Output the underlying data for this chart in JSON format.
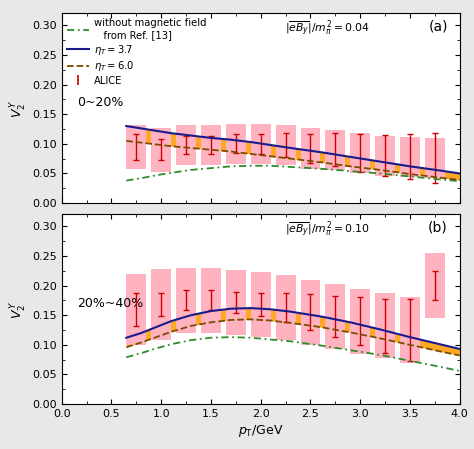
{
  "title_a": "(a)",
  "title_b": "(b)",
  "xlabel": "$p_{\\mathrm{T}}$/GeV",
  "ylabel": "$V_2^{\\,Y}$",
  "xlim": [
    0.0,
    4.0
  ],
  "ylim_a": [
    0.0,
    0.32
  ],
  "ylim_b": [
    0.0,
    0.32
  ],
  "yticks": [
    0.0,
    0.05,
    0.1,
    0.15,
    0.2,
    0.25,
    0.3
  ],
  "xticks": [
    0.0,
    0.5,
    1.0,
    1.5,
    2.0,
    2.5,
    3.0,
    3.5,
    4.0
  ],
  "panel_a_label": "0~20%",
  "panel_b_label": "20%~40%",
  "label_a": "$|\\overline{eB_y}|/m_{\\pi}^2 = 0.04$",
  "label_b": "$|\\overline{eB_y}|/m_{\\pi}^2 = 0.10$",
  "pt": [
    0.65,
    0.8,
    0.95,
    1.1,
    1.3,
    1.5,
    1.7,
    1.9,
    2.1,
    2.3,
    2.6,
    2.9,
    3.2,
    3.5,
    3.8,
    4.0
  ],
  "eta37_a": [
    0.13,
    0.126,
    0.122,
    0.118,
    0.114,
    0.11,
    0.107,
    0.103,
    0.098,
    0.093,
    0.086,
    0.078,
    0.07,
    0.062,
    0.055,
    0.05
  ],
  "eta60_a": [
    0.105,
    0.102,
    0.099,
    0.096,
    0.093,
    0.09,
    0.087,
    0.083,
    0.079,
    0.075,
    0.069,
    0.062,
    0.056,
    0.049,
    0.043,
    0.039
  ],
  "nomag_a": [
    0.038,
    0.042,
    0.047,
    0.051,
    0.056,
    0.059,
    0.062,
    0.063,
    0.063,
    0.061,
    0.058,
    0.054,
    0.05,
    0.045,
    0.04,
    0.037
  ],
  "eta37_b": [
    0.112,
    0.12,
    0.13,
    0.14,
    0.15,
    0.157,
    0.161,
    0.162,
    0.16,
    0.156,
    0.148,
    0.138,
    0.126,
    0.113,
    0.101,
    0.093
  ],
  "eta60_b": [
    0.096,
    0.104,
    0.113,
    0.122,
    0.132,
    0.138,
    0.142,
    0.143,
    0.141,
    0.137,
    0.13,
    0.121,
    0.111,
    0.1,
    0.089,
    0.082
  ],
  "nomag_b": [
    0.079,
    0.086,
    0.094,
    0.101,
    0.108,
    0.112,
    0.113,
    0.112,
    0.109,
    0.106,
    0.099,
    0.091,
    0.083,
    0.073,
    0.063,
    0.056
  ],
  "alice_pt_a": [
    0.75,
    1.0,
    1.25,
    1.5,
    1.75,
    2.0,
    2.25,
    2.5,
    2.75,
    3.0,
    3.25,
    3.5,
    3.75
  ],
  "alice_val_a": [
    0.095,
    0.09,
    0.098,
    0.098,
    0.1,
    0.1,
    0.098,
    0.092,
    0.09,
    0.085,
    0.08,
    0.078,
    0.076
  ],
  "alice_err_a": [
    0.022,
    0.018,
    0.015,
    0.015,
    0.016,
    0.017,
    0.02,
    0.024,
    0.028,
    0.032,
    0.035,
    0.038,
    0.042
  ],
  "alice_box_half_a": [
    0.037,
    0.037,
    0.034,
    0.034,
    0.034,
    0.034,
    0.034,
    0.034,
    0.034,
    0.034,
    0.034,
    0.034,
    0.034
  ],
  "alice_pt_b": [
    0.75,
    1.0,
    1.25,
    1.5,
    1.75,
    2.0,
    2.25,
    2.5,
    2.75,
    3.0,
    3.25,
    3.5,
    3.75
  ],
  "alice_val_b": [
    0.16,
    0.168,
    0.175,
    0.175,
    0.172,
    0.168,
    0.163,
    0.155,
    0.148,
    0.14,
    0.132,
    0.125,
    0.2
  ],
  "alice_err_b": [
    0.028,
    0.02,
    0.017,
    0.017,
    0.018,
    0.02,
    0.024,
    0.03,
    0.035,
    0.04,
    0.046,
    0.052,
    0.025
  ],
  "alice_box_half_b": [
    0.06,
    0.06,
    0.055,
    0.055,
    0.055,
    0.055,
    0.055,
    0.055,
    0.055,
    0.055,
    0.055,
    0.055,
    0.055
  ],
  "color_eta37": "#1a1a8c",
  "color_eta60": "#7b4c00",
  "color_nomag": "#2e8b2e",
  "color_alice": "#cc0000",
  "color_band": "#ff9900",
  "color_alice_box": "#ffb3c1",
  "legend_nomag_line1": "without magnetic field",
  "legend_nomag_line2": "   from Ref. [13]",
  "legend_eta37": "$\\eta_T = 3.7$",
  "legend_eta60": "$\\eta_T = 6.0$",
  "legend_alice": "ALICE",
  "bg_color": "#ffffff",
  "fig_bg": "#e8e8e8"
}
